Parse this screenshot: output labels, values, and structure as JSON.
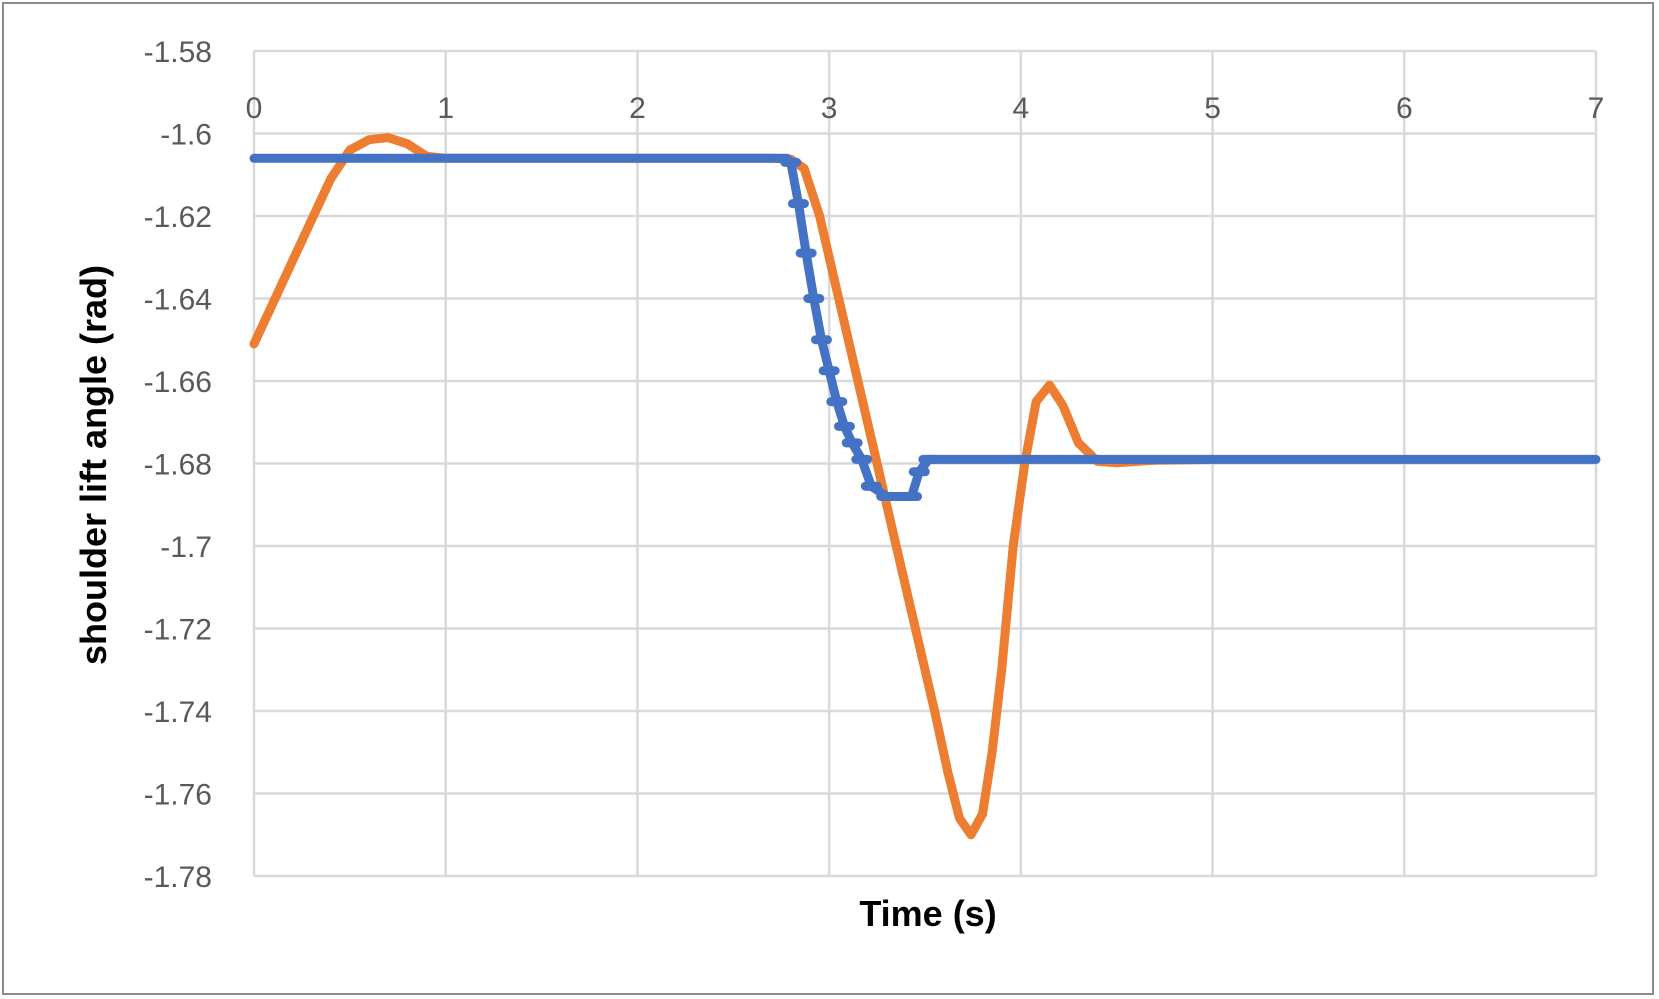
{
  "chart_data": {
    "type": "line",
    "title": "",
    "xlabel": "Time (s)",
    "ylabel": "shoulder lift angle (rad)",
    "xlim": [
      0,
      7
    ],
    "ylim": [
      -1.78,
      -1.58
    ],
    "x_ticks": [
      "0",
      "1",
      "2",
      "3",
      "4",
      "5",
      "6",
      "7"
    ],
    "x_tick_values": [
      0,
      1,
      2,
      3,
      4,
      5,
      6,
      7
    ],
    "y_ticks": [
      "-1.58",
      "-1.6",
      "-1.62",
      "-1.64",
      "-1.66",
      "-1.68",
      "-1.7",
      "-1.72",
      "-1.74",
      "-1.76",
      "-1.78"
    ],
    "y_tick_values": [
      -1.58,
      -1.6,
      -1.62,
      -1.64,
      -1.66,
      -1.68,
      -1.7,
      -1.72,
      -1.74,
      -1.76,
      -1.78
    ],
    "x_axis_position": "top",
    "grid": true,
    "legend": "none",
    "series": [
      {
        "style": "solid",
        "color": "#ED7D31",
        "points": [
          [
            0.0,
            -1.651
          ],
          [
            0.1,
            -1.641
          ],
          [
            0.2,
            -1.631
          ],
          [
            0.3,
            -1.621
          ],
          [
            0.4,
            -1.611
          ],
          [
            0.5,
            -1.604
          ],
          [
            0.6,
            -1.6015
          ],
          [
            0.7,
            -1.601
          ],
          [
            0.8,
            -1.6025
          ],
          [
            0.9,
            -1.6055
          ],
          [
            1.0,
            -1.606
          ],
          [
            1.5,
            -1.606
          ],
          [
            2.0,
            -1.606
          ],
          [
            2.5,
            -1.606
          ],
          [
            2.7,
            -1.606
          ],
          [
            2.8,
            -1.6062
          ],
          [
            2.87,
            -1.6085
          ],
          [
            2.95,
            -1.62
          ],
          [
            3.05,
            -1.64
          ],
          [
            3.15,
            -1.66
          ],
          [
            3.25,
            -1.68
          ],
          [
            3.35,
            -1.7
          ],
          [
            3.45,
            -1.72
          ],
          [
            3.55,
            -1.74
          ],
          [
            3.62,
            -1.755
          ],
          [
            3.68,
            -1.766
          ],
          [
            3.74,
            -1.77
          ],
          [
            3.8,
            -1.765
          ],
          [
            3.85,
            -1.75
          ],
          [
            3.9,
            -1.73
          ],
          [
            3.96,
            -1.7
          ],
          [
            4.02,
            -1.68
          ],
          [
            4.08,
            -1.665
          ],
          [
            4.15,
            -1.661
          ],
          [
            4.22,
            -1.666
          ],
          [
            4.3,
            -1.675
          ],
          [
            4.4,
            -1.6795
          ],
          [
            4.5,
            -1.6798
          ],
          [
            4.7,
            -1.6792
          ],
          [
            5.0,
            -1.679
          ]
        ]
      },
      {
        "style": "stepped-dashed",
        "color": "#4472C4",
        "points": [
          [
            0.0,
            -1.606
          ],
          [
            0.5,
            -1.606
          ],
          [
            1.0,
            -1.606
          ],
          [
            1.5,
            -1.606
          ],
          [
            2.0,
            -1.606
          ],
          [
            2.5,
            -1.606
          ],
          [
            2.78,
            -1.606
          ],
          [
            2.8,
            -1.607
          ],
          [
            2.84,
            -1.617
          ],
          [
            2.88,
            -1.629
          ],
          [
            2.92,
            -1.64
          ],
          [
            2.96,
            -1.65
          ],
          [
            3.0,
            -1.6575
          ],
          [
            3.04,
            -1.665
          ],
          [
            3.08,
            -1.671
          ],
          [
            3.12,
            -1.675
          ],
          [
            3.17,
            -1.679
          ],
          [
            3.22,
            -1.6855
          ],
          [
            3.3,
            -1.688
          ],
          [
            3.43,
            -1.688
          ],
          [
            3.47,
            -1.682
          ],
          [
            3.52,
            -1.679
          ],
          [
            4.0,
            -1.679
          ],
          [
            5.0,
            -1.679
          ],
          [
            6.0,
            -1.679
          ],
          [
            7.0,
            -1.679
          ]
        ]
      }
    ]
  }
}
